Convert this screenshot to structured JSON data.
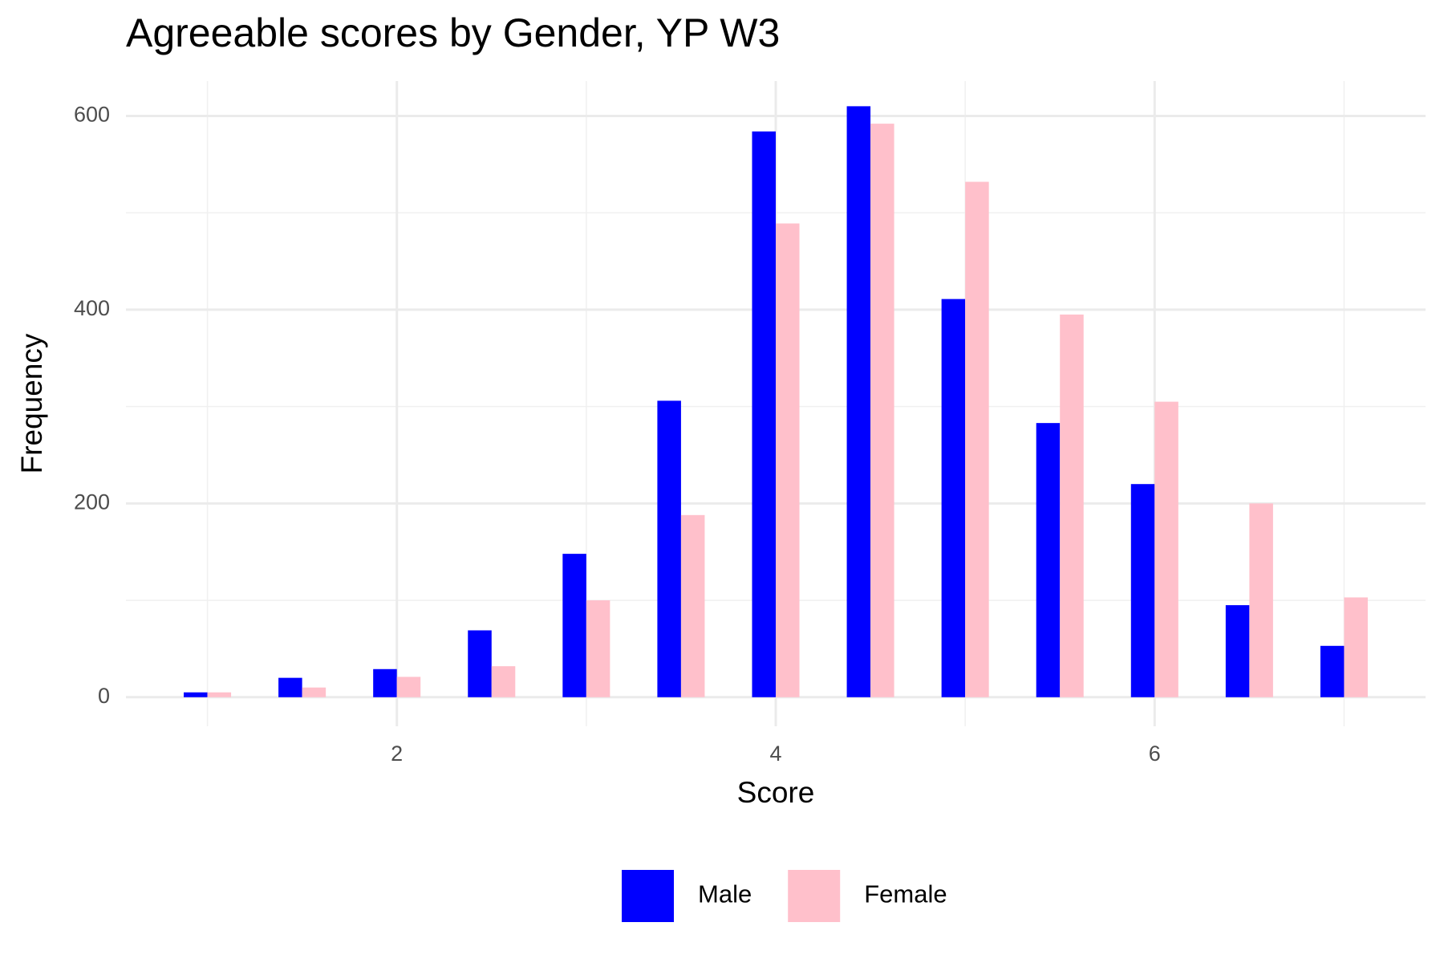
{
  "chart_data": {
    "type": "bar",
    "title": "Agreeable scores by Gender, YP W3",
    "x_label": "Score",
    "y_label": "Frequency",
    "x": [
      1,
      1.5,
      2,
      2.5,
      3,
      3.5,
      4,
      4.5,
      5,
      5.5,
      6,
      6.5,
      7
    ],
    "series": [
      {
        "name": "Male",
        "color": "#0000ff",
        "values": [
          5,
          20,
          29,
          69,
          148,
          306,
          584,
          610,
          411,
          283,
          220,
          95,
          53
        ]
      },
      {
        "name": "Female",
        "color": "#ffc0cb",
        "values": [
          5,
          10,
          21,
          32,
          100,
          188,
          489,
          592,
          532,
          395,
          305,
          200,
          103
        ]
      }
    ],
    "xlim": [
      0.57,
      7.43
    ],
    "ylim": [
      -30,
      636
    ],
    "xticks": [
      2,
      4,
      6
    ],
    "yticks": [
      0,
      200,
      400,
      600
    ],
    "minor_xticks": [
      1,
      3,
      5,
      7
    ],
    "minor_yticks": [
      100,
      300,
      500
    ],
    "grid": true,
    "legend": "bottom"
  }
}
